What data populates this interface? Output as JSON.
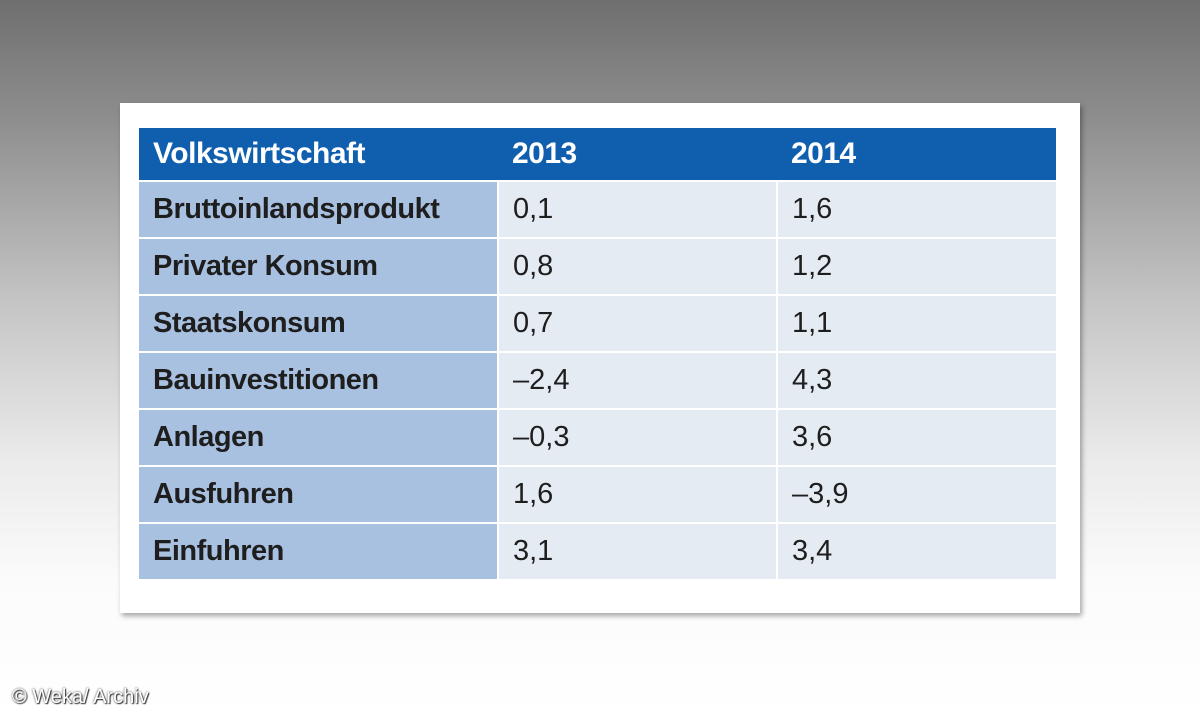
{
  "chart_data": {
    "type": "table",
    "columns": [
      "Volkswirtschaft",
      "2013",
      "2014"
    ],
    "rows": [
      {
        "label": "Bruttoinlandsprodukt",
        "values": [
          "0,1",
          "1,6"
        ]
      },
      {
        "label": "Privater Konsum",
        "values": [
          "0,8",
          "1,2"
        ]
      },
      {
        "label": "Staatskonsum",
        "values": [
          "0,7",
          "1,1"
        ]
      },
      {
        "label": "Bauinvestitionen",
        "values": [
          "–2,4",
          "4,3"
        ]
      },
      {
        "label": "Anlagen",
        "values": [
          "–0,3",
          "3,6"
        ]
      },
      {
        "label": "Ausfuhren",
        "values": [
          "1,6",
          "–3,9"
        ]
      },
      {
        "label": "Einfuhren",
        "values": [
          "3,1",
          "3,4"
        ]
      }
    ]
  },
  "credit": "© Weka/ Archiv",
  "colors": {
    "header_bg": "#0f5fae",
    "label_cell_bg": "#a9c1e1",
    "value_cell_bg": "#e4ebf3"
  }
}
